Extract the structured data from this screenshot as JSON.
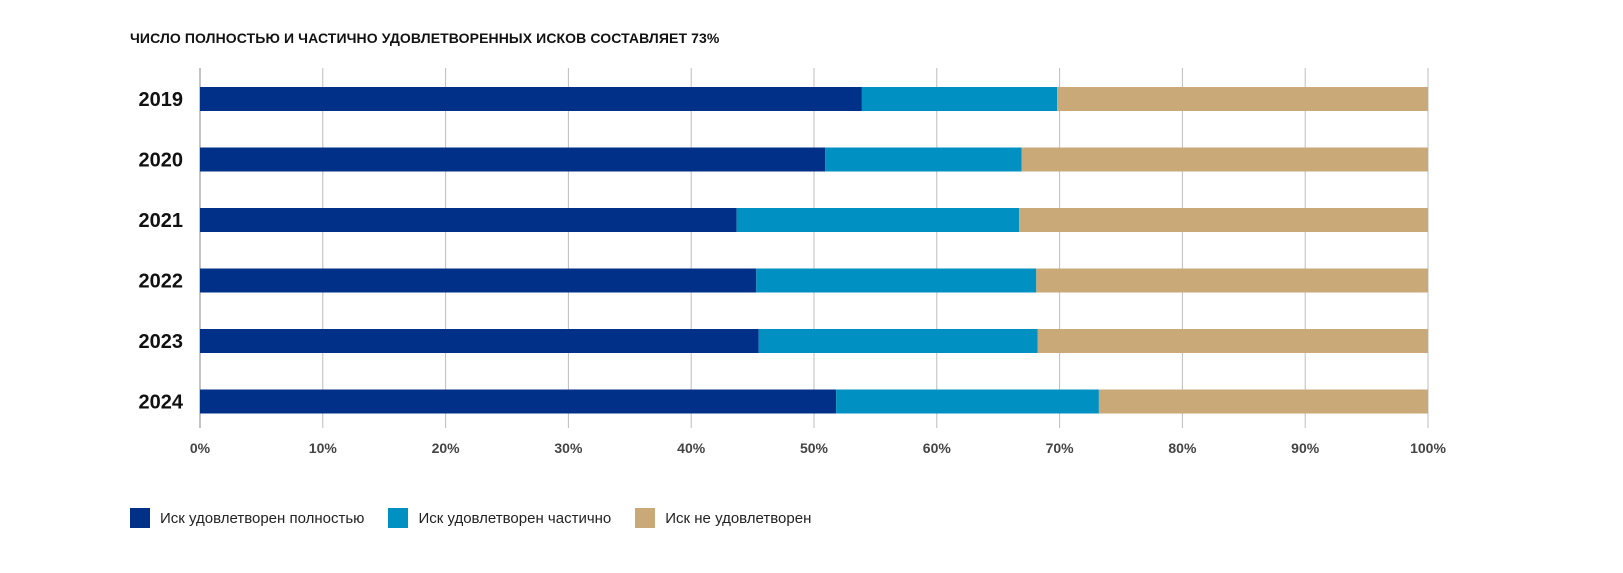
{
  "chart_data": {
    "type": "bar",
    "orientation": "horizontal",
    "stacked": true,
    "title": "ЧИСЛО ПОЛНОСТЬЮ И ЧАСТИЧНО УДОВЛЕТВОРЕННЫХ ИСКОВ СОСТАВЛЯЕТ 73%",
    "categories": [
      "2019",
      "2020",
      "2021",
      "2022",
      "2023",
      "2024"
    ],
    "series": [
      {
        "name": "Иск удовлетворен полностью",
        "color": "#003087",
        "values": [
          53.9,
          50.9,
          43.7,
          45.3,
          45.5,
          51.8
        ]
      },
      {
        "name": "Иск удовлетворен частично",
        "color": "#0091c2",
        "values": [
          15.9,
          16.0,
          23.0,
          22.8,
          22.7,
          21.4
        ]
      },
      {
        "name": "Иск не удовлетворен",
        "color": "#c9a978",
        "values": [
          30.2,
          33.1,
          33.3,
          31.9,
          31.8,
          26.8
        ]
      }
    ],
    "xlim": [
      0,
      100
    ],
    "xticks": [
      "0%",
      "10%",
      "20%",
      "30%",
      "40%",
      "50%",
      "60%",
      "70%",
      "80%",
      "90%",
      "100%"
    ],
    "grid": true,
    "legend_position": "bottom-left"
  }
}
